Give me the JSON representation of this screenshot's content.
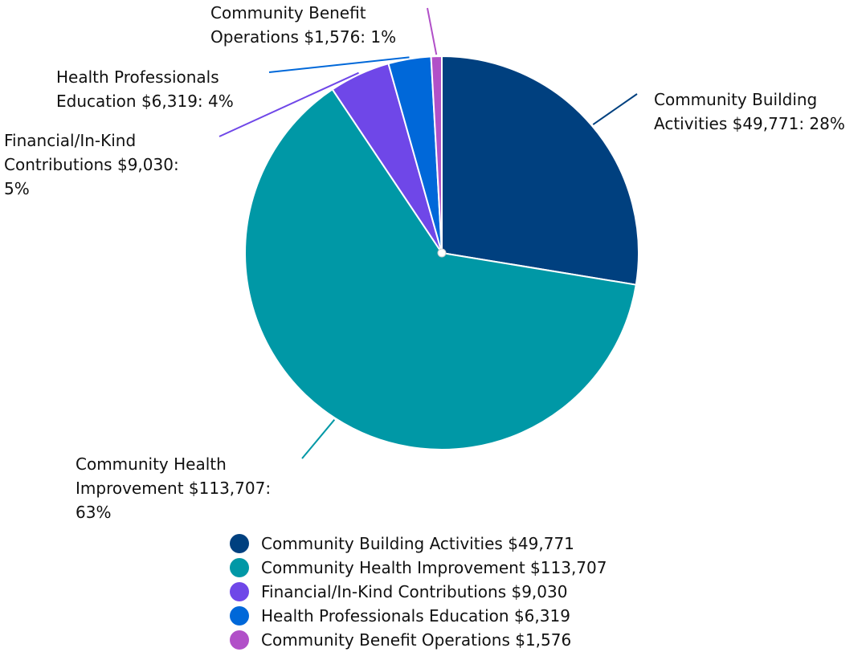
{
  "chart_data": {
    "type": "pie",
    "categories": [
      "Community Building Activities",
      "Community Health Improvement",
      "Financial/In-Kind Contributions",
      "Health Professionals Education",
      "Community Benefit Operations"
    ],
    "values": [
      49771,
      113707,
      9030,
      6319,
      1576
    ],
    "value_labels": [
      "$49,771",
      "$113,707",
      "$9,030",
      "$6,319",
      "$1,576"
    ],
    "data_labels": [
      "$49,771: 28%",
      "$113,707: 63%",
      "$9,030: 5%",
      "$6,319: 4%",
      "$1,576: 1%"
    ],
    "colors": [
      "#00407f",
      "#0098a6",
      "#6f47e8",
      "#0068d9",
      "#b150c8"
    ]
  }
}
